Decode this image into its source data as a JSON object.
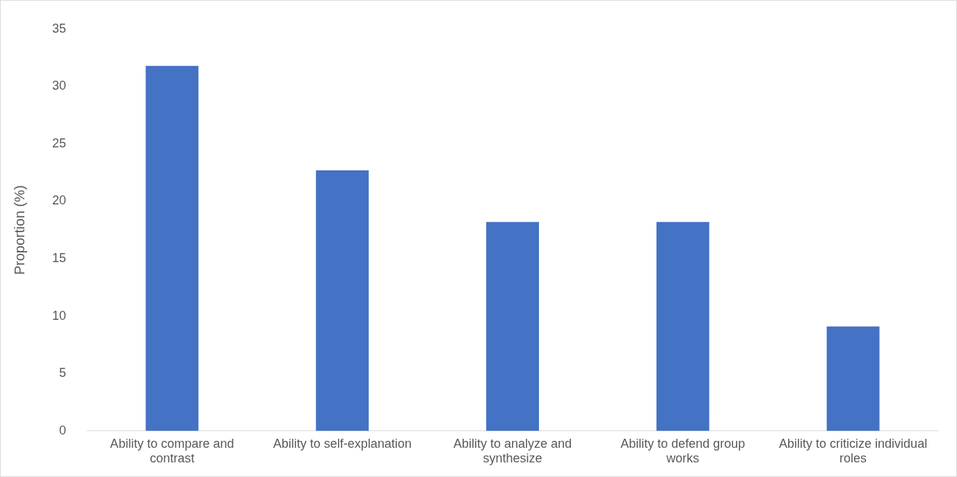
{
  "chart_data": {
    "type": "bar",
    "ylabel": "Proportion (%)",
    "categories": [
      "Ability to compare and contrast",
      "Ability to self-explanation",
      "Ability to analyze and synthesize",
      "Ability to defend group works",
      "Ability to criticize individual roles"
    ],
    "values": [
      31.8,
      22.7,
      18.2,
      18.2,
      9.1
    ],
    "color": "#4472c4",
    "ylim": [
      0,
      35
    ],
    "yticks": [
      0,
      5,
      10,
      15,
      20,
      25,
      30,
      35
    ],
    "grid": false,
    "legend": false
  }
}
